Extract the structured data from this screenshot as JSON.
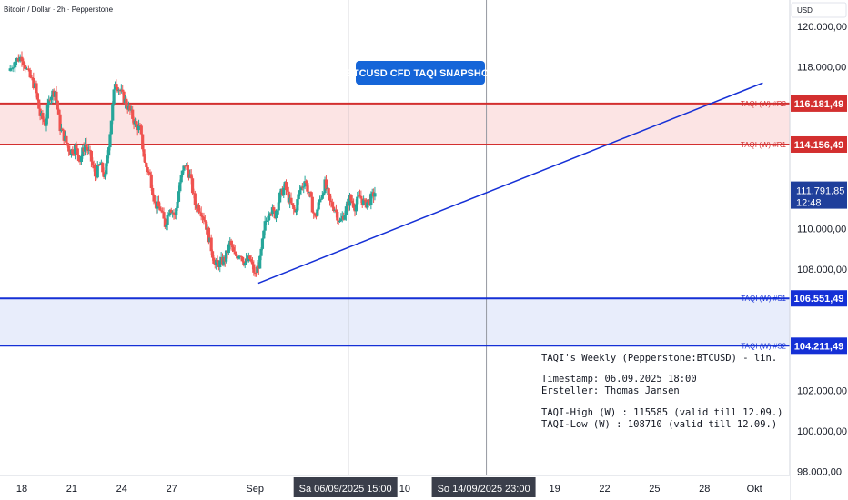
{
  "chart_data": {
    "type": "candlestick",
    "title": "Bitcoin / Dollar · 2h · Pepperstone",
    "currency_label": "USD",
    "y_axis": {
      "range": [
        97800,
        121300
      ],
      "ticks": [
        {
          "value": 120000,
          "label": "120.000,00"
        },
        {
          "value": 118000,
          "label": "118.000,00"
        },
        {
          "value": 110000,
          "label": "110.000,00"
        },
        {
          "value": 108000,
          "label": "108.000,00"
        },
        {
          "value": 102000,
          "label": "102.000,00"
        },
        {
          "value": 100000,
          "label": "100.000,00"
        },
        {
          "value": 98000,
          "label": "98.000,00"
        }
      ]
    },
    "x_axis": {
      "labels": [
        {
          "label": "18",
          "day": 0
        },
        {
          "label": "21",
          "day": 3
        },
        {
          "label": "24",
          "day": 6
        },
        {
          "label": "27",
          "day": 9
        },
        {
          "label": "Sep",
          "day": 14
        },
        {
          "label": "10",
          "day": 23
        },
        {
          "label": "19",
          "day": 32
        },
        {
          "label": "22",
          "day": 35
        },
        {
          "label": "25",
          "day": 38
        },
        {
          "label": "28",
          "day": 41
        },
        {
          "label": "Okt",
          "day": 44
        }
      ],
      "cursors": [
        {
          "label": "Sa 06/09/2025",
          "time": "15:00",
          "day": 19.6
        },
        {
          "label": "So 14/09/2025",
          "time": "23:00",
          "day": 27.9
        }
      ]
    },
    "levels": [
      {
        "name": "TAQI (W) #R2",
        "value": 116181.49,
        "label": "116.181,49",
        "color": "#d32f2f"
      },
      {
        "name": "TAQI (W) #R1",
        "value": 114156.49,
        "label": "114.156,49",
        "color": "#d32f2f"
      },
      {
        "name": "TAQI (W) #S1",
        "value": 106551.49,
        "label": "106.551,49",
        "color": "#1530d6"
      },
      {
        "name": "TAQI (W) #S2",
        "value": 104211.49,
        "label": "104.211,49",
        "color": "#1530d6"
      }
    ],
    "zones": [
      {
        "from": 114156.49,
        "to": 116181.49,
        "color": "#fce4e4"
      },
      {
        "from": 104211.49,
        "to": 106551.49,
        "color": "#e8edfb"
      }
    ],
    "trendline": {
      "start": {
        "day": 14.2,
        "value": 107300
      },
      "end": {
        "day": 44.5,
        "value": 117200
      },
      "color": "#1530d6"
    },
    "current_price": {
      "value": 111791.85,
      "label": "111.791,85",
      "countdown": "12:48",
      "color": "#1f3f9b"
    },
    "snapshot_label": "BTCUSD CFD TAQI SNAPSHOT",
    "annotation": {
      "title": "TAQI's Weekly (Pepperstone:BTCUSD) - lin.",
      "timestamp": "Timestamp: 06.09.2025 18:00",
      "author": "Ersteller: Thomas Jansen",
      "high": "TAQI-High (W) : 115585 (valid till 12.09.)",
      "low": "TAQI-Low (W) : 108710 (valid till 12.09.)"
    },
    "price_path": [
      [
        -0.8,
        117800
      ],
      [
        -0.4,
        118300
      ],
      [
        0,
        118500
      ],
      [
        0.4,
        117600
      ],
      [
        0.8,
        117000
      ],
      [
        1.1,
        115600
      ],
      [
        1.4,
        115200
      ],
      [
        1.7,
        116600
      ],
      [
        2.0,
        116800
      ],
      [
        2.3,
        115000
      ],
      [
        2.6,
        114400
      ],
      [
        2.9,
        113800
      ],
      [
        3.2,
        114000
      ],
      [
        3.5,
        113400
      ],
      [
        3.8,
        114200
      ],
      [
        4.1,
        113600
      ],
      [
        4.4,
        112600
      ],
      [
        4.7,
        113200
      ],
      [
        5.0,
        112500
      ],
      [
        5.3,
        114800
      ],
      [
        5.6,
        117300
      ],
      [
        5.9,
        116800
      ],
      [
        6.2,
        116300
      ],
      [
        6.5,
        115800
      ],
      [
        6.8,
        115200
      ],
      [
        7.1,
        114900
      ],
      [
        7.4,
        113200
      ],
      [
        7.7,
        112600
      ],
      [
        8.0,
        111200
      ],
      [
        8.3,
        111000
      ],
      [
        8.6,
        110200
      ],
      [
        8.9,
        111100
      ],
      [
        9.2,
        110600
      ],
      [
        9.5,
        112300
      ],
      [
        9.8,
        113200
      ],
      [
        10.1,
        112600
      ],
      [
        10.4,
        111200
      ],
      [
        10.7,
        111000
      ],
      [
        11.0,
        110400
      ],
      [
        11.3,
        109300
      ],
      [
        11.6,
        108200
      ],
      [
        11.9,
        108300
      ],
      [
        12.2,
        108500
      ],
      [
        12.5,
        109300
      ],
      [
        12.8,
        108600
      ],
      [
        13.1,
        108800
      ],
      [
        13.4,
        108300
      ],
      [
        13.7,
        108500
      ],
      [
        14.0,
        107700
      ],
      [
        14.3,
        108400
      ],
      [
        14.6,
        110200
      ],
      [
        14.9,
        111000
      ],
      [
        15.2,
        110700
      ],
      [
        15.5,
        111600
      ],
      [
        15.8,
        112100
      ],
      [
        16.1,
        111300
      ],
      [
        16.4,
        110800
      ],
      [
        16.7,
        111900
      ],
      [
        17.0,
        112400
      ],
      [
        17.3,
        111600
      ],
      [
        17.6,
        110500
      ],
      [
        17.9,
        111400
      ],
      [
        18.2,
        112200
      ],
      [
        18.5,
        111300
      ],
      [
        18.8,
        111000
      ],
      [
        19.1,
        110300
      ],
      [
        19.4,
        110800
      ],
      [
        19.7,
        111500
      ],
      [
        20.0,
        111100
      ],
      [
        20.3,
        111600
      ],
      [
        20.6,
        111200
      ],
      [
        20.9,
        111400
      ],
      [
        21.2,
        111800
      ]
    ]
  }
}
